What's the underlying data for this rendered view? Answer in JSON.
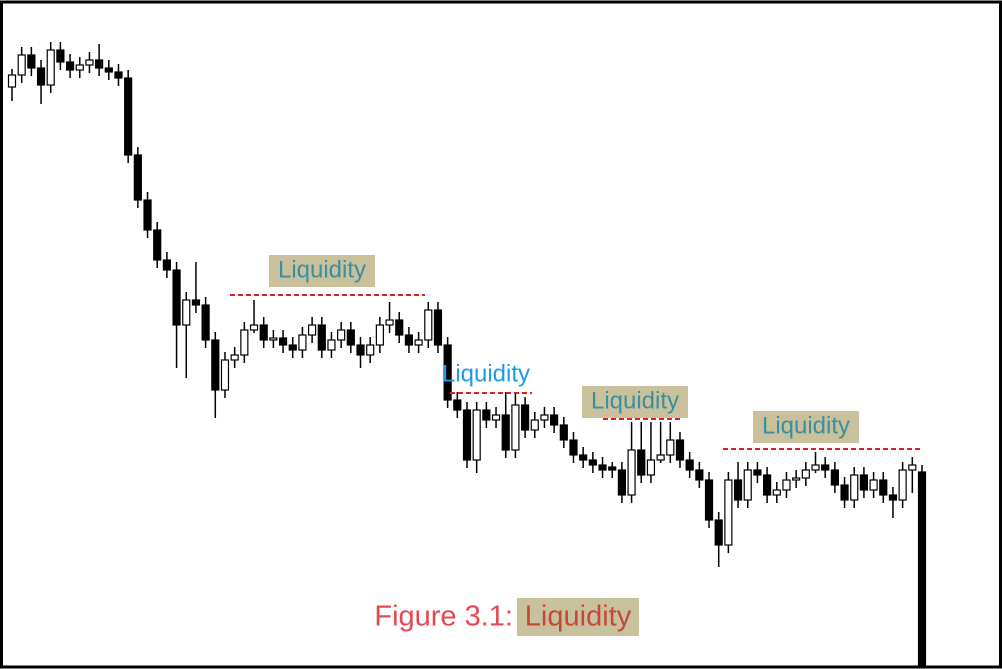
{
  "chart_data": {
    "type": "candlestick",
    "ylim": [
      0,
      66.5
    ],
    "open": [
      58.0,
      59.2,
      61.2,
      59.9,
      58.2,
      61.7,
      60.5,
      59.7,
      60.2,
      60.7,
      59.9,
      59.5,
      58.9,
      51.2,
      46.7,
      43.7,
      40.7,
      39.7,
      34.2,
      36.7,
      36.2,
      32.7,
      27.7,
      30.7,
      31.2,
      33.7,
      34.2,
      32.7,
      32.9,
      32.2,
      31.7,
      33.2,
      34.2,
      31.7,
      32.7,
      33.7,
      32.2,
      31.2,
      32.2,
      34.2,
      34.7,
      33.2,
      32.2,
      32.7,
      35.7,
      32.2,
      26.7,
      25.7,
      20.7,
      25.7,
      24.7,
      25.2,
      21.7,
      26.2,
      23.7,
      24.7,
      25.2,
      24.2,
      22.7,
      21.2,
      20.7,
      20.2,
      20.0,
      19.7,
      17.2,
      21.7,
      19.2,
      20.7,
      21.2,
      22.7,
      20.7,
      19.7,
      18.7,
      14.7,
      12.2,
      18.7,
      16.7,
      19.7,
      19.2,
      17.2,
      17.7,
      18.7,
      18.9,
      19.7,
      20.2,
      19.7,
      18.2,
      16.7,
      19.2,
      17.7,
      18.7,
      17.2,
      16.7,
      19.7,
      19.5
    ],
    "high": [
      59.8,
      62.0,
      62.0,
      60.7,
      62.5,
      62.5,
      61.3,
      61.0,
      61.5,
      62.3,
      60.7,
      60.3,
      59.7,
      52.0,
      47.5,
      44.5,
      41.5,
      40.5,
      37.5,
      40.5,
      37.0,
      33.5,
      31.5,
      32.0,
      34.5,
      36.7,
      35.0,
      33.7,
      33.7,
      33.0,
      34.0,
      35.0,
      35.0,
      33.5,
      34.5,
      34.5,
      33.0,
      33.0,
      35.0,
      36.5,
      35.5,
      34.0,
      33.5,
      36.5,
      36.5,
      33.0,
      27.5,
      26.5,
      26.5,
      26.5,
      26.0,
      27.5,
      27.5,
      27.0,
      25.5,
      26.0,
      26.0,
      25.0,
      23.5,
      22.0,
      21.5,
      21.0,
      20.5,
      20.5,
      24.5,
      24.5,
      24.5,
      24.5,
      24.5,
      23.5,
      21.5,
      20.5,
      19.5,
      15.5,
      19.5,
      20.5,
      20.5,
      20.5,
      20.0,
      18.5,
      19.5,
      19.7,
      20.5,
      21.5,
      21.0,
      20.5,
      19.0,
      20.0,
      20.0,
      19.5,
      19.5,
      18.0,
      20.5,
      21.0,
      20.2
    ],
    "low": [
      56.6,
      58.4,
      59.1,
      56.3,
      57.4,
      59.7,
      58.9,
      58.9,
      59.4,
      59.1,
      58.7,
      58.1,
      50.4,
      45.9,
      42.9,
      39.9,
      38.9,
      29.9,
      28.9,
      35.4,
      31.9,
      24.9,
      26.9,
      29.9,
      30.4,
      33.4,
      31.9,
      31.9,
      31.4,
      30.9,
      30.9,
      32.4,
      30.9,
      30.9,
      31.9,
      31.4,
      29.9,
      30.4,
      31.4,
      33.4,
      32.4,
      31.4,
      31.4,
      31.9,
      31.4,
      25.9,
      24.9,
      19.9,
      19.4,
      23.9,
      23.9,
      20.9,
      20.9,
      22.9,
      22.9,
      23.9,
      23.4,
      21.9,
      20.4,
      19.9,
      19.4,
      18.9,
      18.9,
      16.4,
      16.4,
      18.4,
      18.4,
      20.4,
      20.4,
      19.9,
      18.9,
      17.9,
      13.9,
      10.0,
      11.4,
      15.9,
      15.9,
      18.4,
      16.4,
      16.4,
      16.9,
      17.9,
      18.1,
      19.4,
      18.9,
      17.4,
      15.9,
      15.9,
      16.9,
      16.9,
      16.4,
      14.9,
      15.9,
      17.4,
      0.0
    ],
    "close": [
      59.2,
      61.2,
      59.9,
      58.2,
      61.7,
      60.5,
      59.7,
      60.2,
      60.7,
      59.9,
      59.5,
      58.9,
      51.2,
      46.7,
      43.7,
      40.7,
      39.7,
      34.2,
      36.7,
      36.2,
      32.7,
      27.7,
      30.7,
      31.2,
      33.7,
      34.2,
      32.7,
      32.9,
      32.2,
      31.7,
      33.2,
      34.2,
      31.7,
      32.7,
      33.7,
      32.2,
      31.2,
      32.2,
      34.2,
      34.7,
      33.2,
      32.2,
      32.7,
      35.7,
      32.2,
      26.7,
      25.7,
      20.7,
      25.7,
      24.7,
      25.2,
      21.7,
      26.2,
      23.7,
      24.7,
      25.2,
      24.2,
      22.7,
      21.2,
      20.7,
      20.2,
      19.7,
      19.7,
      17.2,
      21.7,
      19.2,
      20.7,
      21.2,
      22.7,
      20.7,
      19.7,
      18.7,
      14.7,
      12.2,
      18.7,
      16.7,
      19.7,
      19.2,
      17.2,
      17.7,
      18.7,
      18.9,
      19.7,
      20.2,
      19.7,
      18.2,
      16.7,
      19.2,
      17.7,
      18.7,
      17.2,
      16.7,
      19.7,
      20.2,
      0.0
    ],
    "up_color": "#ffffff",
    "down_color": "#000000",
    "level_color": "#e02020",
    "annotations": [
      {
        "text": "Liquidity",
        "level": 37.2,
        "highlight": true
      },
      {
        "text": "Liquidity",
        "level": 27.4,
        "highlight": false
      },
      {
        "text": "Liquidity",
        "level": 24.8,
        "highlight": true
      },
      {
        "text": "Liquidity",
        "level": 21.8,
        "highlight": true
      }
    ],
    "caption": {
      "prefix": "Figure 3.1:",
      "highlight": "Liquidity"
    }
  }
}
